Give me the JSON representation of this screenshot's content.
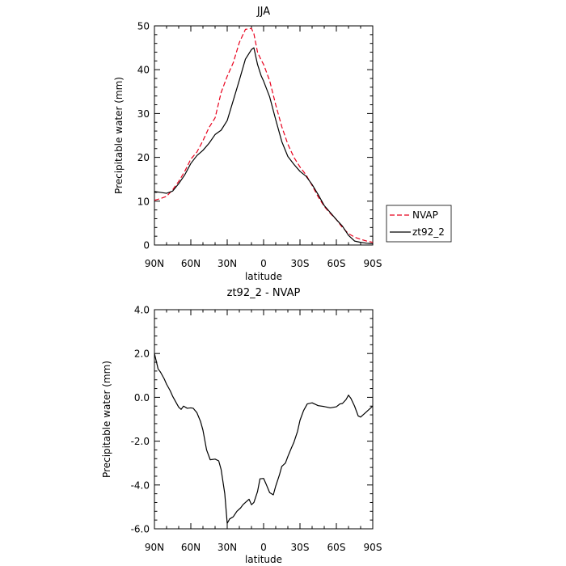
{
  "chart_data": [
    {
      "type": "line",
      "title": "JJA",
      "xlabel": "latitude",
      "ylabel": "Precipitable water (mm)",
      "xlim": [
        90,
        -90
      ],
      "ylim": [
        0,
        50
      ],
      "yticks": [
        "0",
        "10",
        "20",
        "30",
        "40",
        "50"
      ],
      "xticks": [
        {
          "value": 90,
          "label": "90N"
        },
        {
          "value": 60,
          "label": "60N"
        },
        {
          "value": 30,
          "label": "30N"
        },
        {
          "value": 0,
          "label": "0"
        },
        {
          "value": -30,
          "label": "30S"
        },
        {
          "value": -60,
          "label": "60S"
        },
        {
          "value": -90,
          "label": "90S"
        }
      ],
      "legend_position": "right",
      "series": [
        {
          "name": "NVAP",
          "color": "#e8001c",
          "dash": "dashed",
          "x": [
            90,
            85,
            80,
            75,
            70,
            65,
            60,
            55,
            50,
            45,
            40,
            35,
            30,
            25,
            20,
            15,
            10,
            8,
            5,
            2,
            0,
            -5,
            -10,
            -15,
            -20,
            -25,
            -30,
            -35,
            -40,
            -45,
            -50,
            -55,
            -60,
            -65,
            -70,
            -75,
            -80,
            -85,
            -90
          ],
          "y": [
            10.2,
            10.6,
            11.1,
            12.6,
            14.5,
            16.8,
            19.6,
            21.2,
            23.8,
            26.8,
            29.0,
            34.8,
            38.5,
            41.6,
            46.2,
            49.2,
            49.4,
            48.2,
            44.0,
            42.2,
            41.2,
            37.5,
            32.0,
            27.0,
            23.0,
            20.0,
            17.8,
            16.0,
            13.6,
            11.0,
            8.8,
            7.2,
            5.8,
            4.0,
            2.6,
            1.8,
            1.3,
            0.9,
            0.6
          ]
        },
        {
          "name": "zt92_2",
          "color": "#000000",
          "dash": "solid",
          "x": [
            90,
            85,
            80,
            75,
            70,
            65,
            60,
            55,
            50,
            45,
            40,
            35,
            30,
            25,
            20,
            15,
            10,
            8,
            5,
            2,
            0,
            -5,
            -10,
            -15,
            -20,
            -25,
            -30,
            -35,
            -40,
            -45,
            -50,
            -55,
            -60,
            -65,
            -70,
            -75,
            -80,
            -85,
            -90
          ],
          "y": [
            12.2,
            12.0,
            11.8,
            12.3,
            14.0,
            16.0,
            18.6,
            20.4,
            21.6,
            23.2,
            25.2,
            26.2,
            28.4,
            33.0,
            37.6,
            42.4,
            44.6,
            45.0,
            41.2,
            38.6,
            37.4,
            33.8,
            28.6,
            23.6,
            20.2,
            18.4,
            16.8,
            15.7,
            13.8,
            11.5,
            9.0,
            7.4,
            5.8,
            4.3,
            2.2,
            0.9,
            0.6,
            0.4,
            0.3
          ]
        }
      ]
    },
    {
      "type": "line",
      "title": "zt92_2 - NVAP",
      "xlabel": "latitude",
      "ylabel": "Precipitable water (mm)",
      "xlim": [
        90,
        -90
      ],
      "ylim": [
        -6,
        4
      ],
      "yticks": [
        "-6.0",
        "-4.0",
        "-2.0",
        "0.0",
        "2.0",
        "4.0"
      ],
      "xticks": [
        {
          "value": 90,
          "label": "90N"
        },
        {
          "value": 60,
          "label": "60N"
        },
        {
          "value": 30,
          "label": "30N"
        },
        {
          "value": 0,
          "label": "0"
        },
        {
          "value": -30,
          "label": "30S"
        },
        {
          "value": -60,
          "label": "60S"
        },
        {
          "value": -90,
          "label": "90S"
        }
      ],
      "series": [
        {
          "color": "#000000",
          "dash": "solid",
          "x": [
            90,
            87,
            85,
            82,
            80,
            77,
            75,
            72,
            70,
            68,
            66,
            63,
            60,
            58,
            55,
            52,
            50,
            47,
            44,
            40,
            37,
            35,
            32,
            30,
            28,
            25,
            22,
            19,
            17,
            15,
            12,
            10,
            8,
            5,
            3,
            0,
            -2,
            -5,
            -8,
            -10,
            -13,
            -15,
            -18,
            -20,
            -23,
            -25,
            -28,
            -30,
            -33,
            -36,
            -40,
            -45,
            -50,
            -55,
            -60,
            -63,
            -65,
            -68,
            -70,
            -72,
            -75,
            -78,
            -80,
            -85,
            -90
          ],
          "y": [
            2.0,
            1.3,
            1.15,
            0.85,
            0.6,
            0.3,
            0.05,
            -0.25,
            -0.45,
            -0.55,
            -0.4,
            -0.5,
            -0.48,
            -0.5,
            -0.7,
            -1.1,
            -1.5,
            -2.4,
            -2.85,
            -2.82,
            -2.9,
            -3.3,
            -4.4,
            -5.75,
            -5.55,
            -5.45,
            -5.2,
            -5.05,
            -4.9,
            -4.8,
            -4.65,
            -4.9,
            -4.8,
            -4.3,
            -3.72,
            -3.7,
            -3.95,
            -4.35,
            -4.45,
            -4.05,
            -3.55,
            -3.15,
            -3.0,
            -2.7,
            -2.3,
            -2.05,
            -1.55,
            -1.05,
            -0.6,
            -0.3,
            -0.25,
            -0.38,
            -0.42,
            -0.48,
            -0.43,
            -0.3,
            -0.28,
            -0.1,
            0.1,
            -0.05,
            -0.4,
            -0.85,
            -0.9,
            -0.65,
            -0.4
          ]
        }
      ]
    }
  ]
}
